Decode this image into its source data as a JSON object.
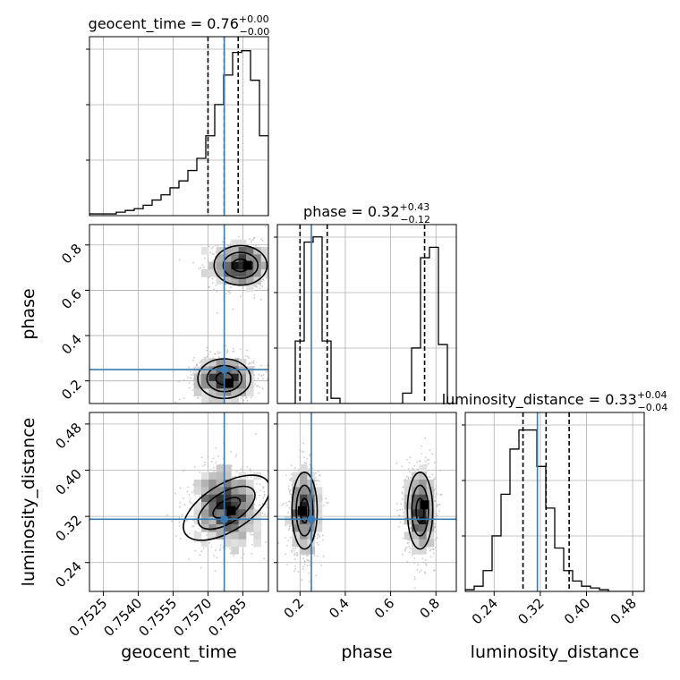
{
  "chart_data": {
    "type": "corner",
    "grid": true,
    "colors": {
      "truth": "#3a7ab3",
      "hist": "#000000",
      "grid": "#b0b0b0",
      "points": "#b4b4b4"
    },
    "parameters": [
      {
        "name": "geocent_time",
        "label": "geocent_time",
        "range": [
          0.7519,
          0.7596
        ],
        "ticks": [
          0.7525,
          0.754,
          0.7555,
          0.757,
          0.7585
        ],
        "tick_labels": [
          "0.7525",
          "0.7540",
          "0.7555",
          "0.7570",
          "0.7585"
        ],
        "truth": 0.7577,
        "quantiles": [
          0.757,
          0.7577,
          0.7583
        ],
        "title": {
          "param": "geocent_time",
          "median": "0.76",
          "plus": "+0.00",
          "minus": "−0.00"
        },
        "hist": {
          "start": 0.7519,
          "bin_width": 0.000385,
          "counts": [
            0.01,
            0.01,
            0.01,
            0.02,
            0.03,
            0.04,
            0.06,
            0.09,
            0.12,
            0.16,
            0.2,
            0.26,
            0.33,
            0.46,
            0.64,
            0.81,
            0.94,
            0.95,
            0.78,
            0.46
          ]
        }
      },
      {
        "name": "phase",
        "label": "phase",
        "range": [
          0.1,
          0.89
        ],
        "ticks": [
          0.2,
          0.4,
          0.6,
          0.8
        ],
        "tick_labels": [
          "0.2",
          "0.4",
          "0.6",
          "0.8"
        ],
        "truth": 0.25,
        "quantiles": [
          0.2,
          0.32,
          0.75
        ],
        "title": {
          "param": "phase",
          "median": "0.32",
          "plus": "+0.43",
          "minus": "−0.12"
        },
        "hist": {
          "start": 0.1,
          "bin_width": 0.0395,
          "counts": [
            0.0,
            0.0,
            0.36,
            0.93,
            0.96,
            0.36,
            0.03,
            0.0,
            0.0,
            0.0,
            0.0,
            0.0,
            0.0,
            0.0,
            0.06,
            0.32,
            0.84,
            0.9,
            0.34,
            0.0
          ]
        }
      },
      {
        "name": "luminosity_distance",
        "label": "luminosity_distance",
        "range": [
          0.19,
          0.5
        ],
        "ticks": [
          0.24,
          0.32,
          0.4,
          0.48
        ],
        "tick_labels": [
          "0.24",
          "0.32",
          "0.40",
          "0.48"
        ],
        "truth": 0.315,
        "quantiles": [
          0.29,
          0.33,
          0.37
        ],
        "title": {
          "param": "luminosity_distance",
          "median": "0.33",
          "plus": "+0.04",
          "minus": "−0.04"
        },
        "hist": {
          "start": 0.19,
          "bin_width": 0.0155,
          "counts": [
            0.01,
            0.03,
            0.12,
            0.32,
            0.56,
            0.82,
            0.93,
            0.93,
            0.72,
            0.48,
            0.25,
            0.12,
            0.06,
            0.03,
            0.02,
            0.01,
            0.0,
            0.0,
            0.0,
            0.0
          ]
        }
      }
    ],
    "pairs": [
      {
        "x": "geocent_time",
        "y": "phase",
        "blobs": [
          {
            "cx": 0.7584,
            "cy": 0.71,
            "sx": 0.00065,
            "sy": 0.05,
            "rot": 0,
            "w": 1
          },
          {
            "cx": 0.7577,
            "cy": 0.21,
            "sx": 0.00065,
            "sy": 0.05,
            "rot": 0,
            "w": 1
          }
        ],
        "modes": [
          {
            "x": 0.7587,
            "y": 0.71
          },
          {
            "x": 0.7579,
            "y": 0.19
          }
        ]
      },
      {
        "x": "geocent_time",
        "y": "luminosity_distance",
        "blobs": [
          {
            "cx": 0.7578,
            "cy": 0.335,
            "sx": 0.00075,
            "sy": 0.033,
            "rot": 0.62,
            "w": 1
          }
        ],
        "modes": [
          {
            "x": 0.758,
            "y": 0.33
          }
        ]
      },
      {
        "x": "phase",
        "y": "luminosity_distance",
        "blobs": [
          {
            "cx": 0.22,
            "cy": 0.33,
            "sx": 0.032,
            "sy": 0.038,
            "rot": 0,
            "w": 1
          },
          {
            "cx": 0.73,
            "cy": 0.33,
            "sx": 0.032,
            "sy": 0.038,
            "rot": 0,
            "w": 1
          }
        ],
        "modes": [
          {
            "x": 0.21,
            "y": 0.33
          },
          {
            "x": 0.75,
            "y": 0.34
          }
        ]
      }
    ]
  }
}
